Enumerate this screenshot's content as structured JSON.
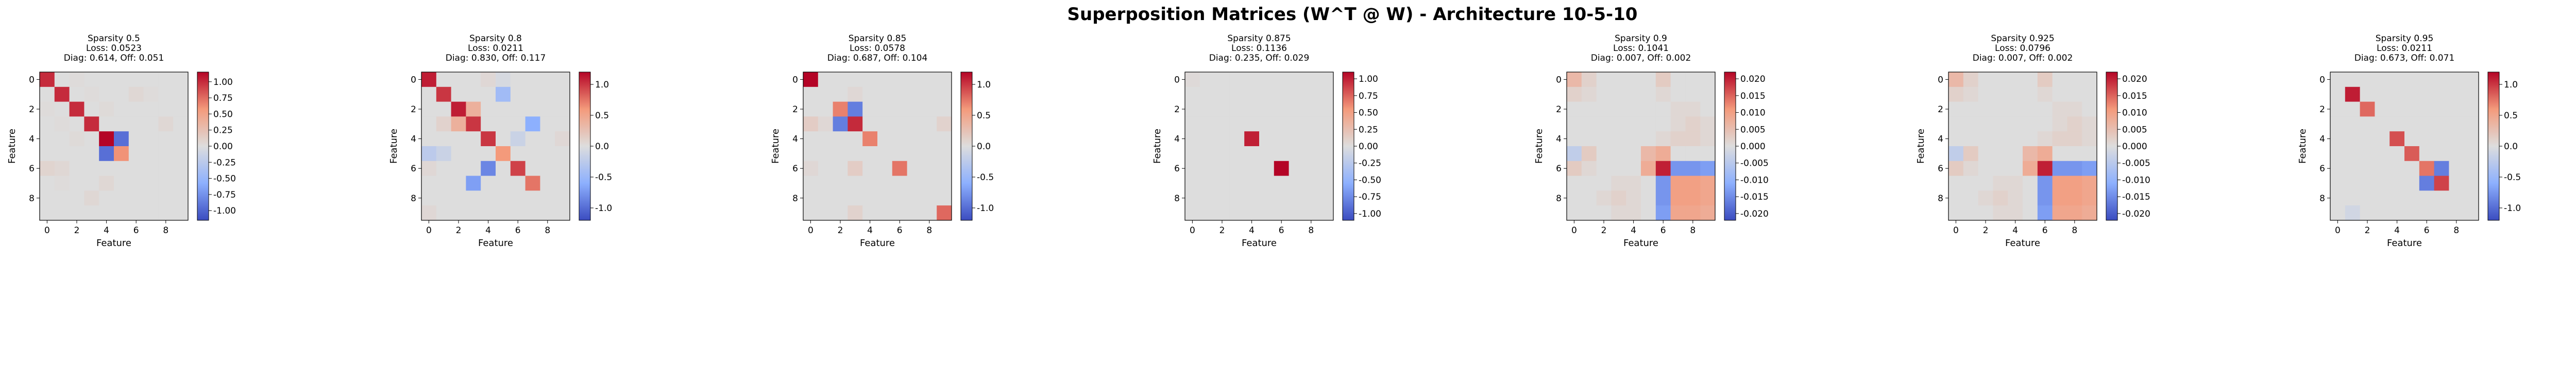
{
  "figure": {
    "suptitle": "Superposition Matrices (W^T @ W) - Architecture 10-5-10"
  },
  "colormap": "coolwarm",
  "colors": {
    "low": "#3b4cc0",
    "mid": "#dddddd",
    "high": "#b40426"
  },
  "chart_data": [
    {
      "type": "heatmap",
      "title": [
        "Sparsity 0.5",
        "Loss: 0.0523",
        "Diag: 0.614, Off: 0.051"
      ],
      "xlabel": "Feature",
      "ylabel": "Feature",
      "xticks": [
        "0",
        "2",
        "4",
        "6",
        "8"
      ],
      "yticks": [
        "0",
        "2",
        "4",
        "6",
        "8"
      ],
      "clim": [
        -1.15,
        1.15
      ],
      "colorbar_ticks": [
        "1.00",
        "0.75",
        "0.50",
        "0.25",
        "0.00",
        "-0.25",
        "-0.50",
        "-0.75",
        "-1.00"
      ],
      "colorbar_tick_values": [
        1.0,
        0.75,
        0.5,
        0.25,
        0.0,
        -0.25,
        -0.5,
        -0.75,
        -1.0
      ],
      "matrix": [
        [
          1.0,
          0.0,
          0.02,
          0.0,
          0.0,
          0.0,
          0.0,
          0.0,
          0.0,
          0.0
        ],
        [
          0.0,
          1.0,
          0.0,
          0.02,
          0.0,
          0.0,
          0.05,
          0.02,
          0.0,
          0.0
        ],
        [
          0.02,
          0.0,
          1.0,
          0.0,
          0.03,
          0.0,
          0.0,
          0.0,
          0.0,
          0.0
        ],
        [
          0.0,
          0.02,
          0.0,
          1.0,
          0.0,
          0.0,
          0.0,
          0.0,
          0.05,
          0.0
        ],
        [
          0.0,
          0.0,
          0.03,
          0.0,
          1.15,
          -0.95,
          0.0,
          0.0,
          0.0,
          0.0
        ],
        [
          0.0,
          0.0,
          0.0,
          0.0,
          -0.95,
          0.6,
          0.0,
          0.0,
          0.0,
          0.0
        ],
        [
          0.08,
          0.05,
          0.0,
          0.0,
          0.0,
          0.0,
          0.0,
          0.0,
          0.0,
          0.0
        ],
        [
          0.0,
          0.02,
          0.0,
          0.0,
          0.05,
          0.0,
          0.0,
          0.0,
          0.0,
          0.0
        ],
        [
          0.0,
          0.0,
          0.0,
          0.05,
          0.0,
          0.0,
          0.0,
          0.0,
          0.0,
          0.0
        ],
        [
          0.0,
          0.0,
          0.0,
          0.0,
          0.0,
          0.0,
          0.0,
          0.0,
          0.0,
          0.0
        ]
      ]
    },
    {
      "type": "heatmap",
      "title": [
        "Sparsity 0.8",
        "Loss: 0.0211",
        "Diag: 0.830, Off: 0.117"
      ],
      "xlabel": "Feature",
      "ylabel": "Feature",
      "xticks": [
        "0",
        "2",
        "4",
        "6",
        "8"
      ],
      "yticks": [
        "0",
        "2",
        "4",
        "6",
        "8"
      ],
      "clim": [
        -1.2,
        1.2
      ],
      "colorbar_ticks": [
        "1.0",
        "0.5",
        "0.0",
        "-0.5",
        "-1.0"
      ],
      "colorbar_tick_values": [
        1.0,
        0.5,
        0.0,
        -0.5,
        -1.0
      ],
      "matrix": [
        [
          1.1,
          0.0,
          0.0,
          0.0,
          0.05,
          -0.05,
          0.0,
          0.0,
          0.0,
          0.0
        ],
        [
          0.0,
          1.0,
          0.0,
          0.0,
          0.0,
          -0.45,
          0.0,
          0.0,
          0.0,
          0.0
        ],
        [
          0.0,
          0.0,
          1.1,
          0.4,
          0.0,
          0.0,
          0.0,
          0.0,
          0.0,
          0.0
        ],
        [
          0.0,
          0.1,
          0.4,
          1.0,
          0.0,
          0.0,
          0.0,
          -0.6,
          0.0,
          0.0
        ],
        [
          0.0,
          0.0,
          0.0,
          0.0,
          1.0,
          0.0,
          -0.15,
          0.0,
          0.0,
          0.05
        ],
        [
          -0.25,
          -0.15,
          0.0,
          0.0,
          0.0,
          0.6,
          0.0,
          0.0,
          0.0,
          0.0
        ],
        [
          0.05,
          0.0,
          0.0,
          0.0,
          -0.85,
          0.0,
          0.95,
          0.0,
          0.0,
          0.0
        ],
        [
          0.0,
          0.0,
          0.0,
          -0.7,
          0.0,
          0.0,
          0.0,
          0.75,
          0.0,
          0.0
        ],
        [
          0.0,
          0.0,
          0.0,
          0.0,
          0.0,
          0.0,
          0.0,
          0.0,
          0.0,
          0.0
        ],
        [
          0.05,
          0.0,
          0.0,
          0.0,
          0.0,
          0.0,
          0.0,
          0.0,
          0.0,
          0.0
        ]
      ]
    },
    {
      "type": "heatmap",
      "title": [
        "Sparsity 0.85",
        "Loss: 0.0578",
        "Diag: 0.687, Off: 0.104"
      ],
      "xlabel": "Feature",
      "ylabel": "Feature",
      "xticks": [
        "0",
        "2",
        "4",
        "6",
        "8"
      ],
      "yticks": [
        "0",
        "2",
        "4",
        "6",
        "8"
      ],
      "clim": [
        -1.2,
        1.2
      ],
      "colorbar_ticks": [
        "1.0",
        "0.5",
        "0.0",
        "-0.5",
        "-1.0"
      ],
      "colorbar_tick_values": [
        1.0,
        0.5,
        0.0,
        -0.5,
        -1.0
      ],
      "matrix": [
        [
          1.2,
          0.0,
          0.0,
          0.0,
          0.0,
          0.0,
          0.0,
          0.0,
          0.0,
          0.0
        ],
        [
          0.0,
          0.0,
          0.0,
          0.05,
          0.0,
          0.0,
          0.0,
          0.0,
          0.0,
          0.0
        ],
        [
          0.0,
          0.0,
          0.7,
          -0.9,
          0.0,
          0.0,
          0.0,
          0.0,
          0.0,
          0.0
        ],
        [
          0.15,
          0.05,
          -0.9,
          1.05,
          0.0,
          0.0,
          0.0,
          0.0,
          0.0,
          0.1
        ],
        [
          0.0,
          0.0,
          0.0,
          0.0,
          0.7,
          0.0,
          0.0,
          0.0,
          0.0,
          0.0
        ],
        [
          0.0,
          0.0,
          0.0,
          0.0,
          0.0,
          0.0,
          0.0,
          0.0,
          0.0,
          0.0
        ],
        [
          0.05,
          0.0,
          0.0,
          0.15,
          0.0,
          0.0,
          0.75,
          0.0,
          0.0,
          0.0
        ],
        [
          0.0,
          0.0,
          0.0,
          0.0,
          0.0,
          0.0,
          0.0,
          0.0,
          0.0,
          0.0
        ],
        [
          0.0,
          0.0,
          0.0,
          0.0,
          0.0,
          0.0,
          0.0,
          0.0,
          0.0,
          0.0
        ],
        [
          0.0,
          0.0,
          0.0,
          0.1,
          0.0,
          0.0,
          0.0,
          0.0,
          0.0,
          0.8
        ]
      ]
    },
    {
      "type": "heatmap",
      "title": [
        "Sparsity 0.875",
        "Loss: 0.1136",
        "Diag: 0.235, Off: 0.029"
      ],
      "xlabel": "Feature",
      "ylabel": "Feature",
      "xticks": [
        "0",
        "2",
        "4",
        "6",
        "8"
      ],
      "yticks": [
        "0",
        "2",
        "4",
        "6",
        "8"
      ],
      "clim": [
        -1.1,
        1.1
      ],
      "colorbar_ticks": [
        "1.00",
        "0.75",
        "0.50",
        "0.25",
        "0.00",
        "-0.25",
        "-0.50",
        "-0.75",
        "-1.00"
      ],
      "colorbar_tick_values": [
        1.0,
        0.75,
        0.5,
        0.25,
        0.0,
        -0.25,
        -0.5,
        -0.75,
        -1.0
      ],
      "matrix": [
        [
          0.03,
          0.0,
          0.0,
          0.0,
          0.0,
          0.0,
          0.0,
          0.0,
          0.0,
          0.0
        ],
        [
          0.0,
          0.0,
          0.0,
          0.0,
          0.0,
          0.0,
          0.0,
          0.0,
          0.0,
          0.0
        ],
        [
          0.0,
          0.0,
          0.0,
          0.0,
          0.0,
          0.0,
          0.0,
          0.0,
          0.0,
          0.0
        ],
        [
          0.0,
          0.0,
          0.0,
          0.0,
          0.0,
          0.0,
          0.0,
          0.0,
          0.0,
          0.0
        ],
        [
          0.0,
          0.0,
          0.0,
          0.0,
          1.0,
          0.0,
          0.0,
          0.0,
          0.0,
          0.0
        ],
        [
          0.0,
          0.0,
          0.0,
          0.0,
          0.0,
          0.0,
          0.0,
          0.0,
          0.0,
          0.0
        ],
        [
          0.0,
          0.0,
          0.0,
          0.0,
          0.0,
          0.0,
          1.1,
          0.0,
          0.0,
          0.0
        ],
        [
          0.0,
          0.0,
          0.0,
          0.0,
          0.0,
          0.0,
          0.0,
          0.0,
          0.0,
          0.0
        ],
        [
          0.0,
          0.0,
          0.0,
          0.0,
          0.0,
          0.0,
          0.0,
          0.0,
          0.0,
          0.0
        ],
        [
          0.0,
          0.0,
          0.0,
          0.0,
          0.0,
          0.0,
          0.0,
          0.0,
          0.0,
          0.0
        ]
      ]
    },
    {
      "type": "heatmap",
      "title": [
        "Sparsity 0.9",
        "Loss: 0.1041",
        "Diag: 0.007, Off: 0.002"
      ],
      "xlabel": "Feature",
      "ylabel": "Feature",
      "xticks": [
        "0",
        "2",
        "4",
        "6",
        "8"
      ],
      "yticks": [
        "0",
        "2",
        "4",
        "6",
        "8"
      ],
      "clim": [
        -0.022,
        0.022
      ],
      "colorbar_ticks": [
        "0.020",
        "0.015",
        "0.010",
        "0.005",
        "0.000",
        "-0.005",
        "-0.010",
        "-0.015",
        "-0.020"
      ],
      "colorbar_tick_values": [
        0.02,
        0.015,
        0.01,
        0.005,
        0.0,
        -0.005,
        -0.01,
        -0.015,
        -0.02
      ],
      "matrix": [
        [
          0.006,
          0.002,
          0.0,
          0.0,
          0.0,
          0.0,
          0.003,
          0.0,
          0.0,
          0.0
        ],
        [
          0.002,
          0.001,
          0.0,
          0.0,
          0.0,
          0.0,
          0.001,
          0.0,
          0.0,
          0.0
        ],
        [
          0.0,
          0.0,
          0.0,
          0.0,
          0.0,
          0.0,
          0.0,
          0.001,
          0.001,
          0.0
        ],
        [
          0.0,
          0.0,
          0.0,
          0.0,
          0.0,
          0.0,
          0.0,
          0.001,
          0.002,
          0.001
        ],
        [
          0.0,
          0.0,
          0.0,
          0.0,
          0.0,
          0.0,
          0.001,
          0.002,
          0.002,
          0.001
        ],
        [
          -0.004,
          0.003,
          0.0,
          0.0,
          0.0,
          0.006,
          0.008,
          0.0,
          0.0,
          0.0
        ],
        [
          0.003,
          0.001,
          0.0,
          0.0,
          0.0,
          0.008,
          0.02,
          -0.014,
          -0.014,
          -0.013
        ],
        [
          0.0,
          0.0,
          0.0,
          0.001,
          0.001,
          0.0,
          -0.014,
          0.01,
          0.01,
          0.009
        ],
        [
          0.0,
          0.0,
          0.001,
          0.002,
          0.001,
          0.0,
          -0.014,
          0.01,
          0.01,
          0.009
        ],
        [
          0.0,
          0.0,
          0.0,
          0.001,
          0.001,
          0.0,
          -0.013,
          0.009,
          0.009,
          0.008
        ]
      ]
    },
    {
      "type": "heatmap",
      "title": [
        "Sparsity 0.925",
        "Loss: 0.0796",
        "Diag: 0.007, Off: 0.002"
      ],
      "xlabel": "Feature",
      "ylabel": "Feature",
      "xticks": [
        "0",
        "2",
        "4",
        "6",
        "8"
      ],
      "yticks": [
        "0",
        "2",
        "4",
        "6",
        "8"
      ],
      "clim": [
        -0.022,
        0.022
      ],
      "colorbar_ticks": [
        "0.020",
        "0.015",
        "0.010",
        "0.005",
        "0.000",
        "-0.005",
        "-0.010",
        "-0.015",
        "-0.020"
      ],
      "colorbar_tick_values": [
        0.02,
        0.015,
        0.01,
        0.005,
        0.0,
        -0.005,
        -0.01,
        -0.015,
        -0.02
      ],
      "matrix": [
        [
          0.006,
          0.002,
          0.0,
          0.0,
          0.0,
          0.0,
          0.003,
          0.0,
          0.0,
          0.0
        ],
        [
          0.002,
          0.001,
          0.0,
          0.0,
          0.0,
          0.0,
          0.001,
          0.0,
          0.0,
          0.0
        ],
        [
          0.0,
          0.0,
          0.0,
          0.0,
          0.0,
          0.0,
          0.0,
          0.001,
          0.001,
          0.0
        ],
        [
          0.0,
          0.0,
          0.0,
          0.0,
          0.0,
          0.0,
          0.0,
          0.001,
          0.002,
          0.001
        ],
        [
          0.0,
          0.0,
          0.0,
          0.0,
          0.0,
          0.0,
          0.001,
          0.002,
          0.002,
          0.001
        ],
        [
          -0.004,
          0.003,
          0.0,
          0.0,
          0.0,
          0.006,
          0.008,
          0.0,
          0.0,
          0.0
        ],
        [
          0.003,
          0.001,
          0.0,
          0.0,
          0.0,
          0.008,
          0.02,
          -0.014,
          -0.014,
          -0.013
        ],
        [
          0.0,
          0.0,
          0.0,
          0.001,
          0.001,
          0.0,
          -0.014,
          0.01,
          0.01,
          0.009
        ],
        [
          0.0,
          0.0,
          0.001,
          0.002,
          0.001,
          0.0,
          -0.014,
          0.01,
          0.01,
          0.009
        ],
        [
          0.0,
          0.0,
          0.0,
          0.001,
          0.001,
          0.0,
          -0.013,
          0.009,
          0.009,
          0.008
        ]
      ]
    },
    {
      "type": "heatmap",
      "title": [
        "Sparsity 0.95",
        "Loss: 0.0211",
        "Diag: 0.673, Off: 0.071"
      ],
      "xlabel": "Feature",
      "ylabel": "Feature",
      "xticks": [
        "0",
        "2",
        "4",
        "6",
        "8"
      ],
      "yticks": [
        "0",
        "2",
        "4",
        "6",
        "8"
      ],
      "clim": [
        -1.2,
        1.2
      ],
      "colorbar_ticks": [
        "1.0",
        "0.5",
        "0.0",
        "-0.5",
        "-1.0"
      ],
      "colorbar_tick_values": [
        1.0,
        0.5,
        0.0,
        -0.5,
        -1.0
      ],
      "matrix": [
        [
          0.0,
          0.0,
          0.0,
          0.0,
          0.0,
          0.0,
          0.0,
          0.0,
          0.0,
          0.0
        ],
        [
          0.0,
          1.1,
          0.0,
          0.0,
          0.0,
          0.0,
          0.0,
          0.0,
          0.0,
          0.0
        ],
        [
          0.0,
          0.0,
          0.8,
          0.0,
          0.0,
          0.0,
          0.0,
          0.0,
          0.0,
          0.0
        ],
        [
          0.0,
          0.0,
          0.0,
          0.0,
          0.0,
          0.0,
          0.0,
          0.0,
          0.0,
          0.0
        ],
        [
          0.0,
          0.0,
          0.0,
          0.0,
          0.9,
          0.0,
          0.0,
          0.0,
          0.0,
          0.0
        ],
        [
          0.0,
          0.0,
          0.0,
          0.0,
          0.0,
          0.85,
          0.0,
          0.0,
          0.0,
          0.0
        ],
        [
          0.0,
          0.0,
          0.0,
          0.0,
          0.0,
          0.0,
          0.75,
          -0.9,
          0.0,
          0.0
        ],
        [
          0.0,
          0.0,
          0.0,
          0.0,
          0.0,
          0.0,
          -0.9,
          0.95,
          0.0,
          0.0
        ],
        [
          0.0,
          0.0,
          0.0,
          0.0,
          0.0,
          0.0,
          0.0,
          0.0,
          0.0,
          0.0
        ],
        [
          0.0,
          -0.1,
          0.0,
          0.0,
          0.0,
          0.0,
          0.0,
          0.0,
          0.0,
          0.0
        ]
      ]
    }
  ]
}
